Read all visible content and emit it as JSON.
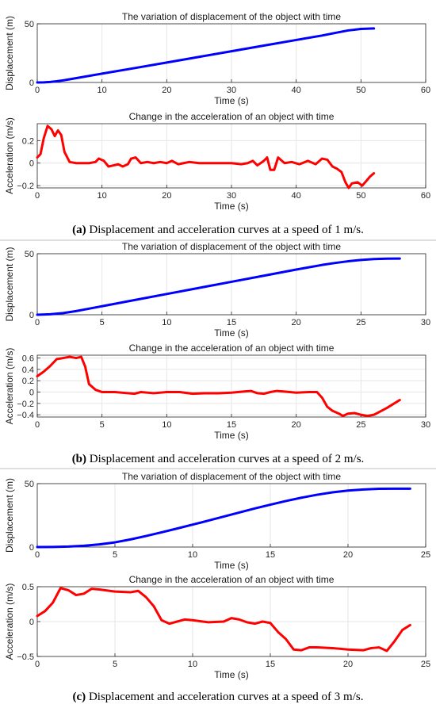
{
  "colors": {
    "displacement": "#0000ff",
    "acceleration": "#ff0000"
  },
  "panels": [
    {
      "caption_letter": "(a)",
      "caption_text": " Displacement and acceleration curves at a speed of 1 m/s."
    },
    {
      "caption_letter": "(b)",
      "caption_text": " Displacement and acceleration curves at a speed of 2 m/s."
    },
    {
      "caption_letter": "(c)",
      "caption_text": " Displacement and acceleration curves at a speed of 3 m/s."
    }
  ],
  "chart_data": [
    {
      "type": "line",
      "title": "The variation of displacement of the object with time",
      "xlabel": "Time (s)",
      "ylabel": "Displacement (m)",
      "xlim": [
        0,
        60
      ],
      "ylim": [
        0,
        50
      ],
      "xticks": [
        0,
        10,
        20,
        30,
        40,
        50,
        60
      ],
      "yticks": [
        0,
        50
      ],
      "grid": true,
      "series": [
        {
          "color": "displacement",
          "x": [
            0,
            1,
            2,
            3,
            4,
            5,
            10,
            15,
            20,
            25,
            30,
            35,
            40,
            44,
            46,
            48,
            50,
            52
          ],
          "y": [
            0,
            0.1,
            0.4,
            1.0,
            1.8,
            2.7,
            7.5,
            12.2,
            17.0,
            21.8,
            26.6,
            31.4,
            36.2,
            40.0,
            42.2,
            44.3,
            45.6,
            46.0
          ]
        }
      ]
    },
    {
      "type": "line",
      "title": "Change in the acceleration of an object with time",
      "xlabel": "Time (s)",
      "ylabel": "Acceleration (m/s)",
      "xlim": [
        0,
        60
      ],
      "ylim": [
        -0.22,
        0.35
      ],
      "xticks": [
        0,
        10,
        20,
        30,
        40,
        50,
        60
      ],
      "yticks": [
        -0.2,
        0,
        0.2
      ],
      "grid": true,
      "series": [
        {
          "color": "acceleration",
          "x": [
            0,
            0.5,
            1,
            1.6,
            2.2,
            2.7,
            3.2,
            3.7,
            4.2,
            5,
            6,
            8,
            9,
            9.5,
            10.3,
            11,
            11.8,
            12.5,
            13.2,
            14,
            14.5,
            15.2,
            16,
            17,
            18,
            19,
            20,
            20.8,
            21.8,
            22.6,
            23.5,
            25,
            28,
            30,
            31.5,
            32.5,
            33.3,
            34,
            35,
            35.5,
            36,
            36.6,
            37.2,
            38.2,
            39.3,
            40.5,
            41.8,
            43,
            44,
            44.8,
            45.6,
            46.3,
            47,
            47.6,
            48.1,
            48.6,
            49.5,
            50.2,
            50.8,
            51.4,
            52
          ],
          "y": [
            0.05,
            0.08,
            0.22,
            0.33,
            0.3,
            0.24,
            0.29,
            0.25,
            0.1,
            0.01,
            0,
            0,
            0.01,
            0.04,
            0.02,
            -0.03,
            -0.02,
            -0.01,
            -0.03,
            -0.01,
            0.04,
            0.05,
            0,
            0.01,
            0,
            0.01,
            0,
            0.02,
            -0.01,
            0,
            0.01,
            0,
            0,
            0,
            -0.01,
            0,
            0.02,
            -0.02,
            0.02,
            0.05,
            -0.06,
            -0.06,
            0.05,
            0,
            0.01,
            -0.01,
            0.02,
            -0.01,
            0.04,
            0.03,
            -0.03,
            -0.05,
            -0.08,
            -0.17,
            -0.22,
            -0.18,
            -0.17,
            -0.2,
            -0.16,
            -0.12,
            -0.09
          ]
        }
      ]
    },
    {
      "type": "line",
      "title": "The variation of displacement of the object with time",
      "xlabel": "Time (s)",
      "ylabel": "Displacement (m)",
      "xlim": [
        0,
        30
      ],
      "ylim": [
        0,
        50
      ],
      "xticks": [
        0,
        5,
        10,
        15,
        20,
        25,
        30
      ],
      "yticks": [
        0,
        50
      ],
      "grid": true,
      "series": [
        {
          "color": "displacement",
          "x": [
            0,
            1,
            2,
            3,
            4,
            5,
            7.5,
            10,
            12.5,
            15,
            17.5,
            20,
            22,
            23,
            24,
            25,
            26,
            27,
            28
          ],
          "y": [
            0,
            0.4,
            1.4,
            3.0,
            5.0,
            7.0,
            12.0,
            17.0,
            22.0,
            27.0,
            32.0,
            37.0,
            40.8,
            42.4,
            43.8,
            44.9,
            45.6,
            45.9,
            46.0
          ]
        }
      ]
    },
    {
      "type": "line",
      "title": "Change in the acceleration of an object with time",
      "xlabel": "Time (s)",
      "ylabel": "Acceleration (m/s)",
      "xlim": [
        0,
        30
      ],
      "ylim": [
        -0.44,
        0.65
      ],
      "xticks": [
        0,
        5,
        10,
        15,
        20,
        25,
        30
      ],
      "yticks": [
        -0.4,
        -0.2,
        0,
        0.2,
        0.4,
        0.6
      ],
      "grid": true,
      "series": [
        {
          "color": "acceleration",
          "x": [
            0,
            0.5,
            1,
            1.5,
            2,
            2.5,
            3,
            3.4,
            3.7,
            4,
            4.5,
            5,
            6,
            7,
            7.5,
            8,
            9,
            10,
            11,
            12,
            13,
            14,
            15,
            16,
            16.5,
            17,
            17.5,
            18,
            18.5,
            19,
            20,
            21,
            21.6,
            22,
            22.4,
            22.8,
            23.3,
            23.6,
            24,
            24.5,
            25,
            25.5,
            26,
            27,
            28
          ],
          "y": [
            0.28,
            0.36,
            0.46,
            0.58,
            0.6,
            0.62,
            0.6,
            0.62,
            0.45,
            0.14,
            0.04,
            0,
            0,
            -0.02,
            -0.03,
            0,
            -0.02,
            0,
            0,
            -0.03,
            -0.02,
            -0.02,
            -0.01,
            0.01,
            0.02,
            -0.02,
            -0.03,
            0,
            0.02,
            0.01,
            -0.01,
            0,
            0,
            -0.1,
            -0.26,
            -0.33,
            -0.38,
            -0.42,
            -0.38,
            -0.37,
            -0.4,
            -0.42,
            -0.4,
            -0.28,
            -0.14
          ]
        }
      ]
    },
    {
      "type": "line",
      "title": "The variation of displacement of the object with time",
      "xlabel": "Time (s)",
      "ylabel": "Displacement (m)",
      "xlim": [
        0,
        25
      ],
      "ylim": [
        0,
        50
      ],
      "xticks": [
        0,
        5,
        10,
        15,
        20,
        25
      ],
      "yticks": [
        0,
        50
      ],
      "grid": true,
      "series": [
        {
          "color": "displacement",
          "x": [
            0,
            1,
            2,
            3,
            4,
            5,
            6,
            7,
            8,
            9,
            10,
            11,
            12,
            13,
            14,
            15,
            16,
            17,
            18,
            19,
            20,
            21,
            22,
            23,
            24
          ],
          "y": [
            0,
            0.1,
            0.4,
            1.0,
            2.1,
            3.7,
            6.0,
            8.7,
            11.6,
            14.6,
            17.7,
            20.8,
            24.0,
            27.2,
            30.4,
            33.4,
            36.3,
            38.9,
            41.2,
            43.1,
            44.5,
            45.4,
            45.9,
            46.0,
            46.0
          ]
        }
      ]
    },
    {
      "type": "line",
      "title": "Change in the acceleration of an object with time",
      "xlabel": "Time (s)",
      "ylabel": "Acceleration (m/s)",
      "xlim": [
        0,
        25
      ],
      "ylim": [
        -0.5,
        0.5
      ],
      "xticks": [
        0,
        5,
        10,
        15,
        20,
        25
      ],
      "yticks": [
        -0.5,
        0,
        0.5
      ],
      "grid": true,
      "series": [
        {
          "color": "acceleration",
          "x": [
            0,
            0.5,
            1,
            1.5,
            2,
            2.5,
            3,
            3.5,
            4,
            5,
            6,
            6.5,
            7,
            7.5,
            8,
            8.5,
            9,
            9.5,
            10,
            11,
            12,
            12.5,
            13,
            13.5,
            14,
            14.5,
            15,
            15.5,
            16,
            16.5,
            17,
            17.5,
            18,
            19,
            20,
            21,
            21.5,
            22,
            22.5,
            23,
            23.5,
            24
          ],
          "y": [
            0.08,
            0.15,
            0.27,
            0.48,
            0.45,
            0.38,
            0.4,
            0.47,
            0.46,
            0.43,
            0.42,
            0.44,
            0.35,
            0.22,
            0.02,
            -0.03,
            0,
            0.03,
            0.02,
            -0.01,
            0,
            0.05,
            0.03,
            -0.01,
            -0.03,
            0,
            -0.02,
            -0.15,
            -0.25,
            -0.4,
            -0.41,
            -0.37,
            -0.37,
            -0.38,
            -0.4,
            -0.41,
            -0.38,
            -0.37,
            -0.42,
            -0.28,
            -0.12,
            -0.05
          ]
        }
      ]
    }
  ]
}
